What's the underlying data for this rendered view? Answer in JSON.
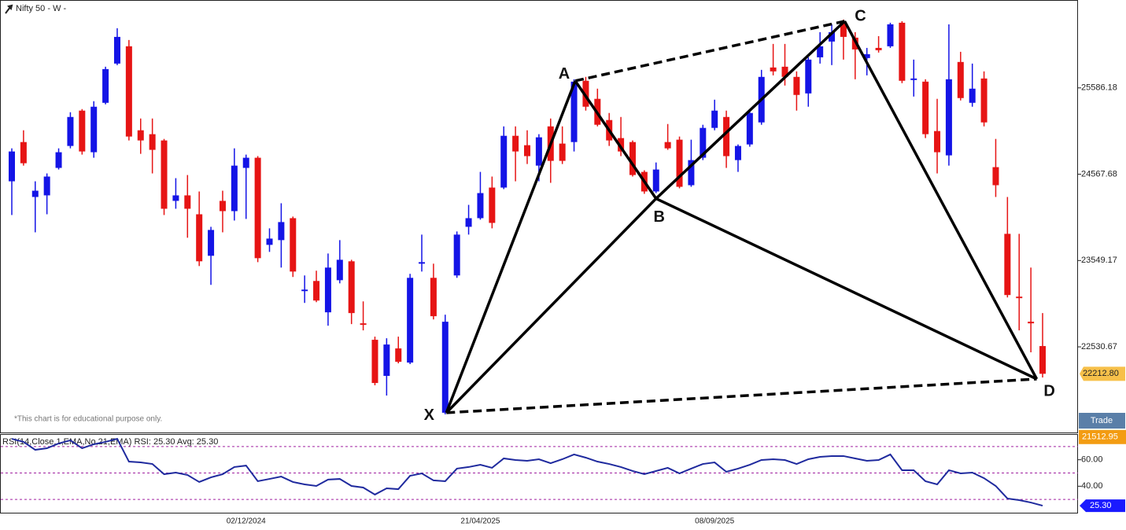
{
  "chart_data": {
    "type": "candlestick",
    "title": "Nifty 50 - W -",
    "note": "*This chart is for educational purpose only.",
    "button": "Trade",
    "up_color": "#1414e6",
    "down_color": "#e61414",
    "categories": [
      null,
      null,
      null,
      null,
      null,
      null,
      null,
      null,
      null,
      null,
      null,
      null,
      null,
      null,
      null,
      null,
      null,
      null,
      null,
      null,
      "02/12/2024",
      null,
      null,
      null,
      null,
      null,
      null,
      null,
      null,
      null,
      null,
      null,
      null,
      null,
      null,
      null,
      null,
      null,
      null,
      null,
      "21/04/2025",
      null,
      null,
      null,
      null,
      null,
      null,
      null,
      null,
      null,
      null,
      null,
      null,
      null,
      null,
      null,
      null,
      null,
      null,
      null,
      "08/09/2025",
      null,
      null,
      null,
      null,
      null,
      null,
      null,
      null,
      null,
      null,
      null,
      null,
      null,
      null,
      null,
      null,
      null,
      null,
      null,
      null,
      null,
      null,
      null,
      null,
      null,
      null,
      null,
      null
    ],
    "open": [
      24484,
      24947,
      24299,
      24318,
      24642,
      24901,
      25318,
      24827,
      25410,
      25873,
      26077,
      25086,
      25040,
      24966,
      24253,
      24318,
      24095,
      23605,
      24253,
      24132,
      24642,
      24762,
      23734,
      23790,
      24049,
      23188,
      23308,
      22938,
      23317,
      23540,
      22808,
      22614,
      22188,
      22512,
      22345,
      23512,
      23345,
      21753,
      23373,
      23947,
      24049,
      24410,
      24410,
      25021,
      24910,
      24669,
      25132,
      24929,
      24947,
      25670,
      25457,
      25207,
      24994,
      24947,
      24595,
      24364,
      24947,
      24975,
      24438,
      24762,
      25114,
      25243,
      24734,
      24919,
      25179,
      25827,
      25836,
      25716,
      25521,
      25947,
      26133,
      26355,
      26179,
      25938,
      26058,
      26077,
      26355,
      25679,
      25660,
      25077,
      24790,
      25892,
      25410,
      25697,
      24651,
      23864,
      23123,
      22827,
      22540
    ],
    "high": [
      24873,
      25086,
      24484,
      24577,
      24873,
      25299,
      25336,
      25429,
      25836,
      26290,
      26151,
      25225,
      25225,
      24984,
      24521,
      24558,
      24364,
      23947,
      24373,
      24873,
      24799,
      24781,
      23929,
      24225,
      24068,
      23373,
      23429,
      23632,
      23790,
      23558,
      23067,
      22651,
      22632,
      22651,
      23392,
      23855,
      23512,
      22910,
      23892,
      24206,
      24595,
      24540,
      25132,
      25132,
      25086,
      25040,
      25225,
      25132,
      25688,
      25716,
      25577,
      25290,
      25243,
      24966,
      24614,
      24706,
      25160,
      25012,
      24975,
      25151,
      25447,
      25318,
      24919,
      25318,
      25799,
      26105,
      26105,
      25781,
      25947,
      26244,
      26336,
      26392,
      26244,
      26058,
      26197,
      26355,
      26373,
      25920,
      25688,
      25457,
      26336,
      26012,
      25873,
      25781,
      24984,
      24299,
      23864,
      23466,
      22929
    ],
    "low": [
      24086,
      24669,
      23882,
      24095,
      24623,
      24873,
      24799,
      24762,
      25392,
      25855,
      24966,
      24808,
      24577,
      24086,
      24160,
      23818,
      23484,
      23262,
      23882,
      24021,
      24040,
      23530,
      23651,
      23466,
      23355,
      23049,
      23058,
      22780,
      23280,
      22799,
      22725,
      22077,
      21956,
      22336,
      22327,
      23419,
      22854,
      21734,
      23345,
      23855,
      24031,
      23929,
      24392,
      24484,
      24688,
      24484,
      24466,
      24688,
      24836,
      25318,
      25132,
      24901,
      24781,
      24540,
      24336,
      24345,
      24855,
      24401,
      24419,
      24734,
      25086,
      24642,
      24595,
      24892,
      25151,
      25734,
      25614,
      25318,
      25364,
      25873,
      25855,
      25920,
      25688,
      25734,
      26003,
      26058,
      25642,
      25484,
      24994,
      24577,
      24669,
      25438,
      25364,
      25132,
      24299,
      23114,
      22725,
      22466,
      22169
    ],
    "close": [
      24836,
      24697,
      24373,
      24540,
      24827,
      25243,
      24836,
      25364,
      25808,
      26188,
      25012,
      24966,
      24855,
      24160,
      24318,
      24160,
      23540,
      23910,
      24132,
      24669,
      24762,
      23577,
      23808,
      24003,
      23419,
      23206,
      23077,
      23466,
      23558,
      22929,
      22790,
      22104,
      22558,
      22354,
      23345,
      23530,
      22892,
      22827,
      23855,
      24049,
      24345,
      23993,
      25021,
      24836,
      24781,
      25003,
      24725,
      24725,
      25660,
      25364,
      25151,
      24966,
      24836,
      24558,
      24364,
      24623,
      24873,
      24419,
      24734,
      25114,
      25318,
      24781,
      24901,
      25290,
      25716,
      25781,
      25716,
      25503,
      25920,
      26077,
      26244,
      26188,
      26040,
      25984,
      26031,
      26336,
      25670,
      25697,
      25040,
      24827,
      25688,
      25466,
      25577,
      25179,
      24438,
      23142,
      23105,
      22808,
      22212.8
    ],
    "ylim": [
      21520,
      26614
    ],
    "yticks": [
      22530.67,
      23549.17,
      24567.68,
      25586.18
    ],
    "last_price": {
      "value": 22212.8,
      "label": "22212.80"
    },
    "crosshair_price": 21512.95,
    "pattern": {
      "points": [
        {
          "label": "X",
          "index": 37.1,
          "price": 21753
        },
        {
          "label": "A",
          "index": 48.1,
          "price": 25669
        },
        {
          "label": "B",
          "index": 55,
          "price": 24280
        },
        {
          "label": "C",
          "index": 71.1,
          "price": 26373
        },
        {
          "label": "D",
          "index": 87.5,
          "price": 22151
        }
      ],
      "solid": [
        [
          0,
          1
        ],
        [
          1,
          2
        ],
        [
          2,
          3
        ],
        [
          3,
          4
        ],
        [
          0,
          2
        ],
        [
          2,
          4
        ]
      ],
      "dashed": [
        [
          1,
          3
        ],
        [
          0,
          4
        ]
      ]
    },
    "rsi": {
      "legend": "RSI(14,Close,1,EMA,No,21,EMA) RSI: 25.30 Avg: 25.30",
      "color": "#1f2a9e",
      "values": [
        75.8,
        73.5,
        67.5,
        68.7,
        72.3,
        74.7,
        68.7,
        71.7,
        73.5,
        75.8,
        58.6,
        58.0,
        56.8,
        49.1,
        50.3,
        48.5,
        43.2,
        46.7,
        49.1,
        54.5,
        55.6,
        43.8,
        45.5,
        47.3,
        43.2,
        41.4,
        40.2,
        45.0,
        45.5,
        40.2,
        39.0,
        33.7,
        38.4,
        37.8,
        47.9,
        49.7,
        44.4,
        43.8,
        53.3,
        54.5,
        56.2,
        53.9,
        61.0,
        59.8,
        59.2,
        60.4,
        57.4,
        60.4,
        64.0,
        61.6,
        58.6,
        56.8,
        54.5,
        51.5,
        49.1,
        51.5,
        53.9,
        49.7,
        53.3,
        56.8,
        58.0,
        50.9,
        53.3,
        56.2,
        59.8,
        60.4,
        59.8,
        56.8,
        60.4,
        62.2,
        62.8,
        62.8,
        61.0,
        59.2,
        59.8,
        64.0,
        52.1,
        52.1,
        43.8,
        41.4,
        52.1,
        49.7,
        50.3,
        46.1,
        40.2,
        30.7,
        29.5,
        27.7,
        25.3
      ],
      "ylim": [
        20,
        80
      ],
      "yticks": [
        {
          "value": 60,
          "label": "60.00"
        },
        {
          "value": 40,
          "label": "40.00"
        }
      ],
      "levels": [
        70,
        50,
        30
      ],
      "level_color": "#a020a0",
      "last": {
        "value": 25.3,
        "label": "25.30"
      }
    }
  }
}
